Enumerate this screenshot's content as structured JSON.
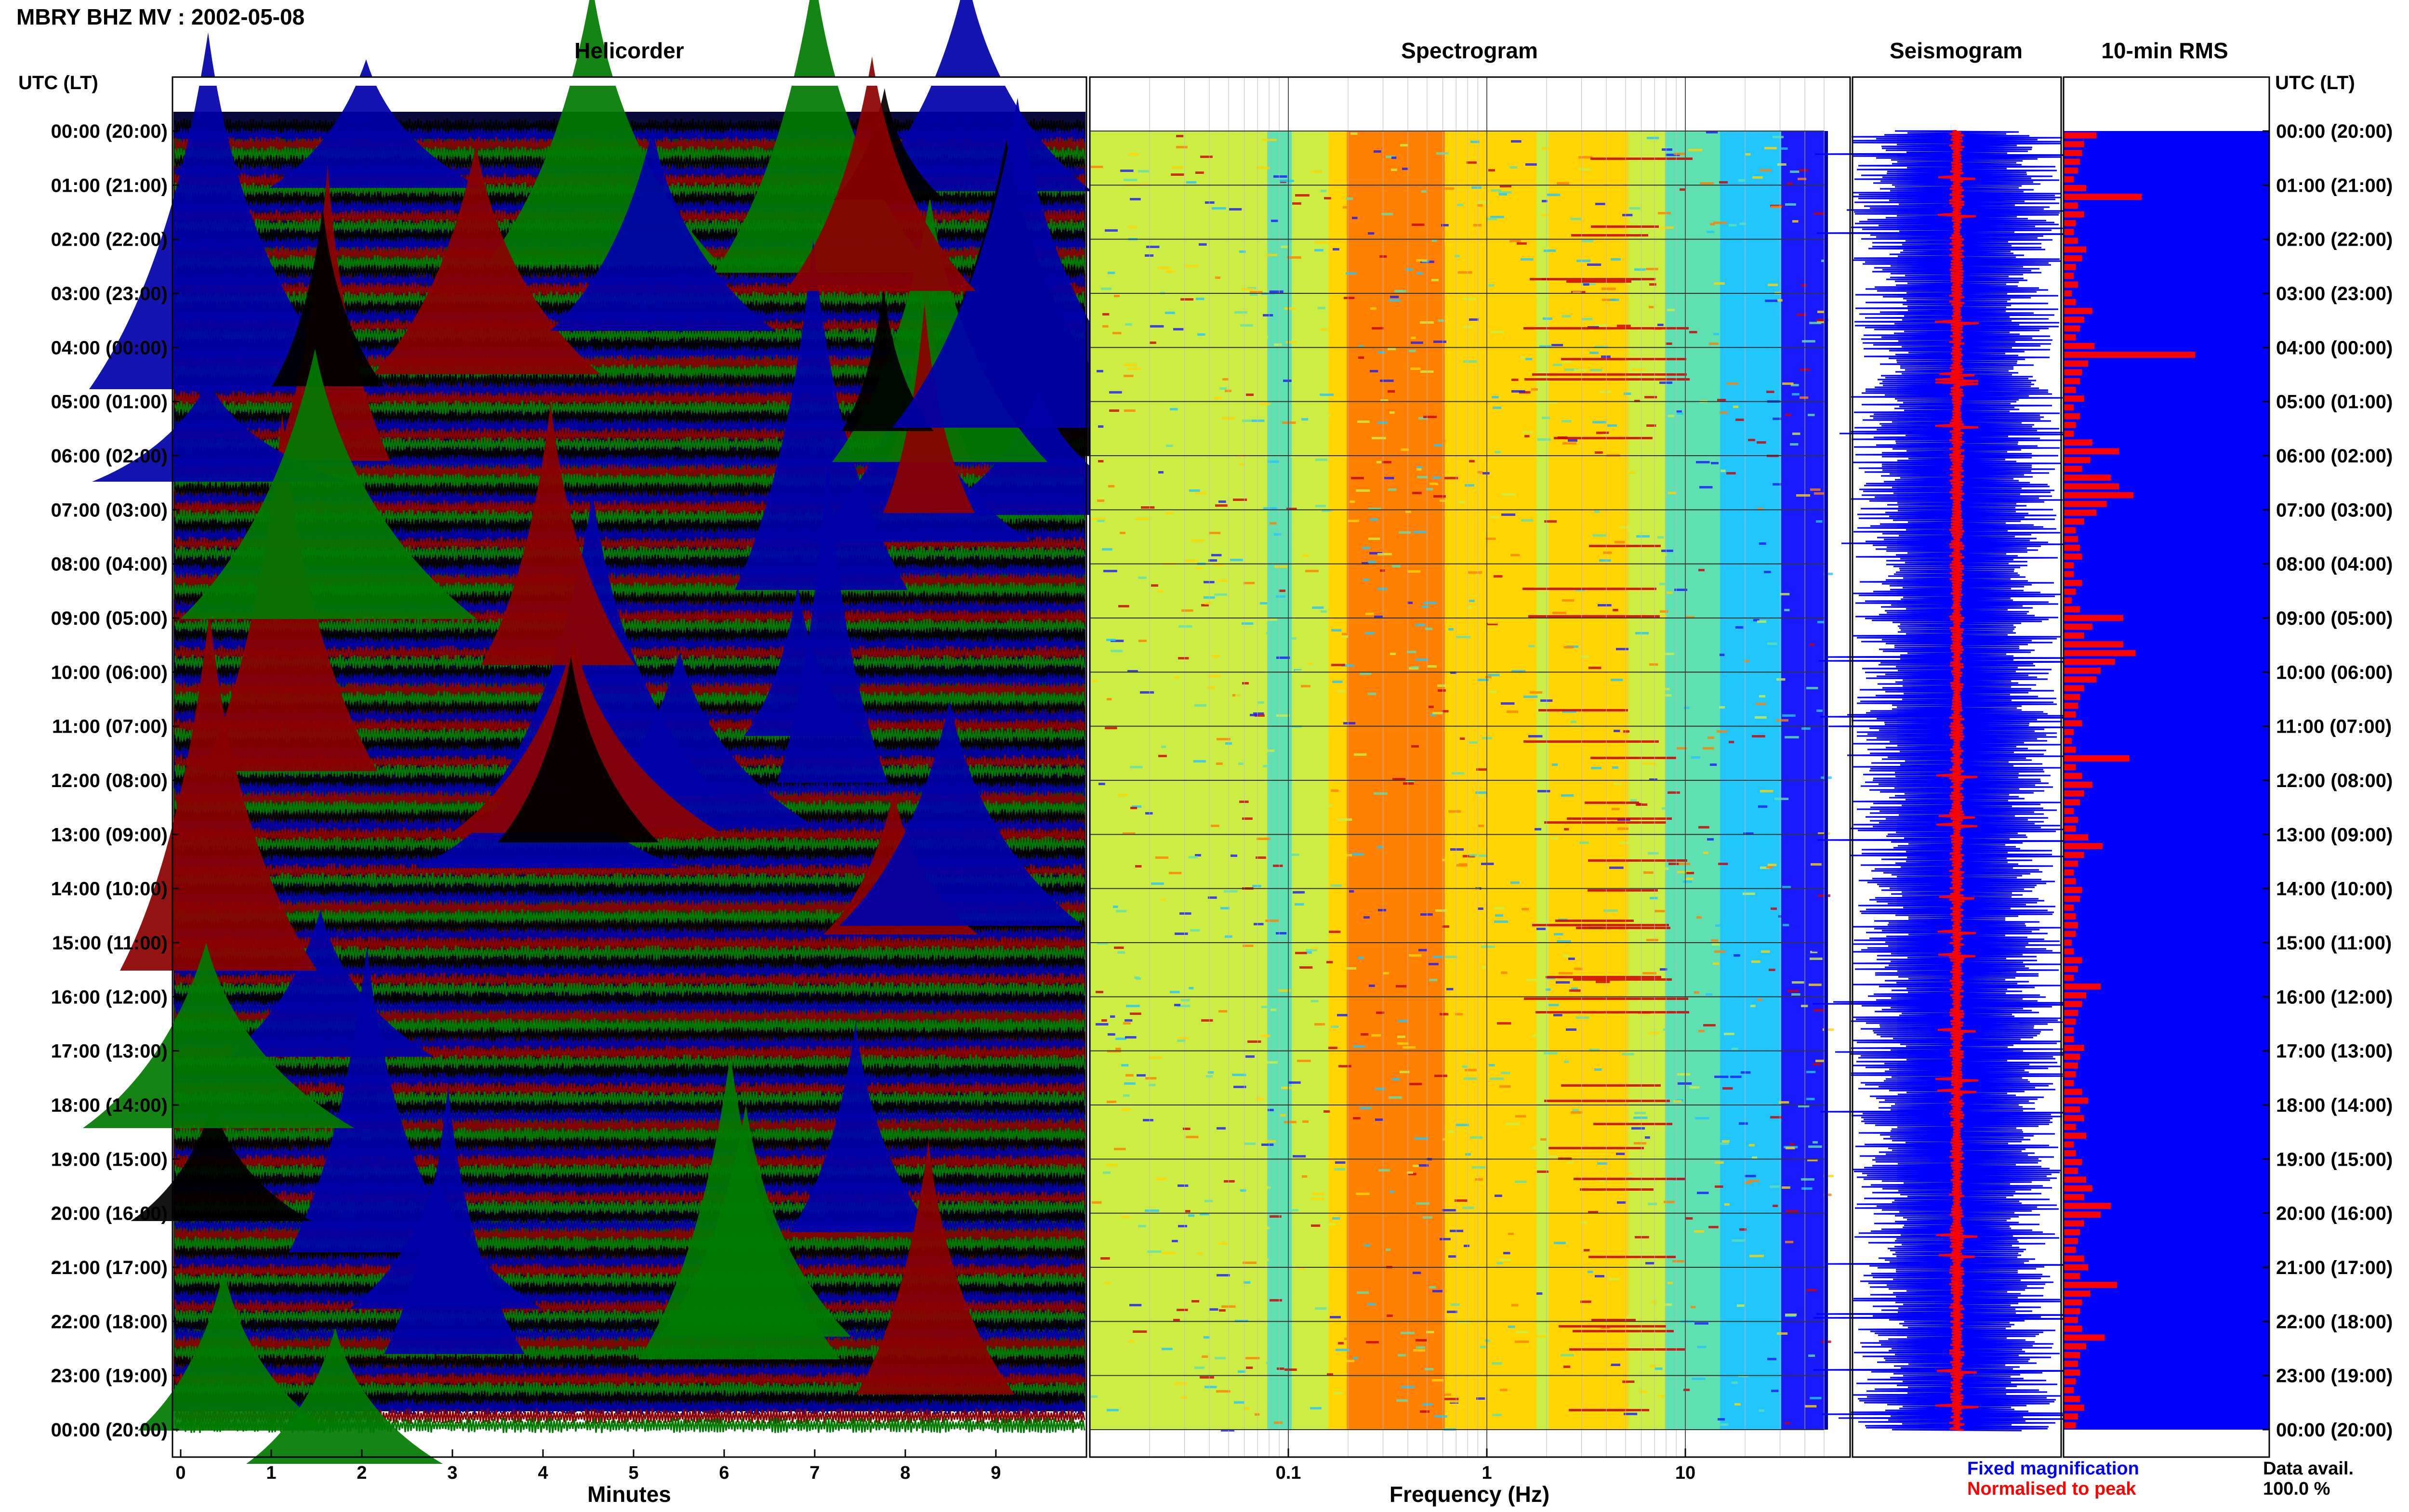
{
  "header": {
    "title": "MBRY BHZ MV : 2002-05-08",
    "utc_label_left": "UTC (LT)",
    "utc_label_right": "UTC (LT)"
  },
  "panels": {
    "helicorder": "Helicorder",
    "spectrogram": "Spectrogram",
    "seismogram": "Seismogram",
    "rms": "10-min RMS"
  },
  "legend": {
    "fixed": "Fixed magnification",
    "normalised": "Normalised to peak",
    "fixed_color": "#0000ff",
    "normalised_color": "#ff0000",
    "data_avail_label": "Data avail.",
    "data_avail_value": "100.0 %"
  },
  "chart_data": [
    {
      "type": "line",
      "title": "Helicorder",
      "xlabel": "Minutes",
      "xlim": [
        0,
        10
      ],
      "x_ticks": [
        "0",
        "1",
        "2",
        "3",
        "4",
        "5",
        "6",
        "7",
        "8",
        "9"
      ],
      "y_ticks": [
        "00:00 (20:00)",
        "01:00 (21:00)",
        "02:00 (22:00)",
        "03:00 (23:00)",
        "04:00 (00:00)",
        "05:00 (01:00)",
        "06:00 (02:00)",
        "07:00 (03:00)",
        "08:00 (04:00)",
        "09:00 (05:00)",
        "10:00 (06:00)",
        "11:00 (07:00)",
        "12:00 (08:00)",
        "13:00 (09:00)",
        "14:00 (10:00)",
        "15:00 (11:00)",
        "16:00 (12:00)",
        "17:00 (13:00)",
        "18:00 (14:00)",
        "19:00 (15:00)",
        "20:00 (16:00)",
        "21:00 (17:00)",
        "22:00 (18:00)",
        "23:00 (19:00)",
        "00:00 (20:00)"
      ],
      "trace_colors": [
        "#000000",
        "#0000aa",
        "#8b0000",
        "#007a00"
      ]
    },
    {
      "type": "heatmap",
      "title": "Spectrogram",
      "xlabel": "Frequency (Hz)",
      "x_scale": "log",
      "xlim": [
        0.01,
        50
      ],
      "x_ticks": [
        "0.1",
        "1",
        "10"
      ],
      "peak_band_hz": [
        0.2,
        0.6
      ],
      "secondary_band_hz": [
        2,
        5
      ],
      "colormap": [
        "#1a1aff",
        "#22c6ff",
        "#5fe0b0",
        "#ccee44",
        "#ffd400",
        "#ff8000",
        "#cc0000"
      ]
    },
    {
      "type": "line",
      "title": "Seismogram",
      "series": [
        {
          "name": "Fixed magnification",
          "color": "#0000ff"
        },
        {
          "name": "Normalised to peak",
          "color": "#ff0000"
        }
      ]
    },
    {
      "type": "bar",
      "title": "10-min RMS",
      "values": [
        0.16,
        0.1,
        0.09,
        0.08,
        0.07,
        0.05,
        0.11,
        0.38,
        0.07,
        0.1,
        0.06,
        0.05,
        0.07,
        0.11,
        0.09,
        0.06,
        0.05,
        0.07,
        0.04,
        0.06,
        0.14,
        0.1,
        0.08,
        0.06,
        0.15,
        0.64,
        0.12,
        0.09,
        0.08,
        0.06,
        0.1,
        0.05,
        0.08,
        0.06,
        0.05,
        0.14,
        0.27,
        0.13,
        0.09,
        0.23,
        0.27,
        0.34,
        0.21,
        0.16,
        0.1,
        0.06,
        0.07,
        0.08,
        0.09,
        0.05,
        0.05,
        0.09,
        0.06,
        0.04,
        0.08,
        0.29,
        0.14,
        0.1,
        0.29,
        0.35,
        0.25,
        0.18,
        0.16,
        0.1,
        0.08,
        0.07,
        0.06,
        0.09,
        0.05,
        0.04,
        0.06,
        0.32,
        0.06,
        0.09,
        0.14,
        0.1,
        0.08,
        0.05,
        0.07,
        0.06,
        0.12,
        0.19,
        0.1,
        0.07,
        0.05,
        0.06,
        0.09,
        0.08,
        0.05,
        0.06,
        0.07,
        0.06,
        0.04,
        0.05,
        0.09,
        0.07,
        0.05,
        0.18,
        0.11,
        0.09,
        0.07,
        0.06,
        0.05,
        0.05,
        0.1,
        0.08,
        0.07,
        0.06,
        0.05,
        0.09,
        0.12,
        0.08,
        0.1,
        0.06,
        0.11,
        0.05,
        0.06,
        0.09,
        0.07,
        0.11,
        0.14,
        0.1,
        0.23,
        0.18,
        0.1,
        0.08,
        0.07,
        0.06,
        0.1,
        0.12,
        0.08,
        0.26,
        0.13,
        0.09,
        0.08,
        0.07,
        0.09,
        0.2,
        0.11,
        0.08,
        0.07,
        0.08,
        0.06,
        0.05,
        0.08,
        0.1,
        0.07,
        0.06
      ]
    }
  ]
}
